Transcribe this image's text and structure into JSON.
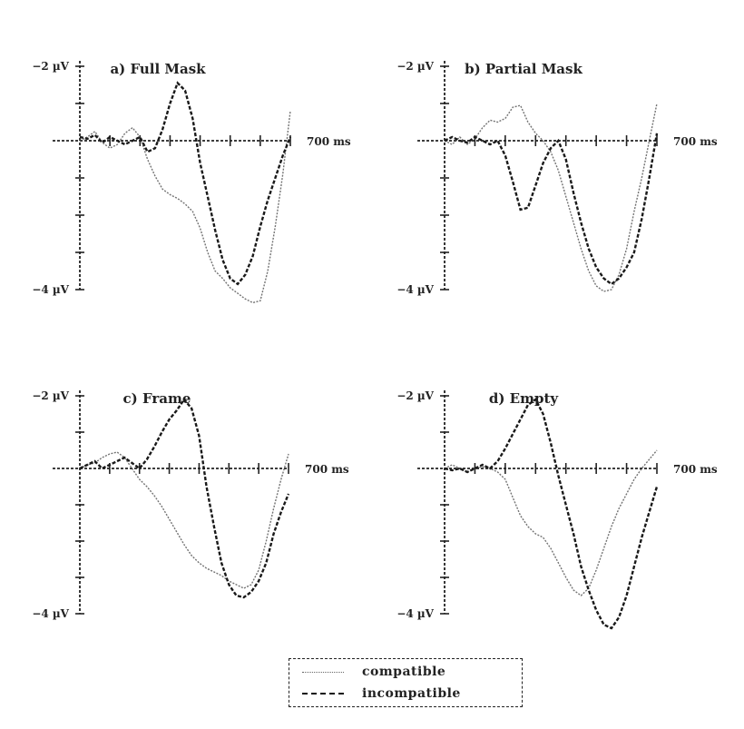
{
  "chart_data": [
    {
      "type": "line",
      "title": "a) Full Mask",
      "y_top_label": "−2 µV",
      "y_bottom_label": "−4 µV",
      "x_end_label": "700 ms",
      "xlim": [
        0,
        700
      ],
      "series": [
        {
          "name": "compatible",
          "x": [
            0,
            25,
            50,
            75,
            100,
            125,
            150,
            175,
            200,
            225,
            250,
            275,
            300,
            325,
            350,
            375,
            400,
            425,
            450,
            475,
            500,
            525,
            550,
            575,
            600,
            625,
            650,
            675,
            700
          ],
          "y": [
            0,
            0.1,
            0.25,
            -0.05,
            -0.2,
            -0.1,
            0.2,
            0.35,
            0.1,
            -0.5,
            -0.95,
            -1.3,
            -1.45,
            -1.55,
            -1.7,
            -1.9,
            -2.35,
            -3.0,
            -3.5,
            -3.7,
            -3.95,
            -4.1,
            -4.25,
            -4.35,
            -4.3,
            -3.5,
            -2.3,
            -0.9,
            0.8
          ]
        },
        {
          "name": "incompatible",
          "x": [
            0,
            25,
            50,
            75,
            100,
            125,
            150,
            175,
            200,
            225,
            250,
            275,
            300,
            325,
            350,
            375,
            400,
            425,
            450,
            475,
            500,
            525,
            550,
            575,
            600,
            625,
            650,
            675,
            700
          ],
          "y": [
            0.1,
            0.05,
            0.15,
            -0.05,
            0.1,
            0.0,
            -0.1,
            0.0,
            0.1,
            -0.3,
            -0.2,
            0.3,
            1.0,
            1.55,
            1.35,
            0.6,
            -0.6,
            -1.5,
            -2.4,
            -3.2,
            -3.7,
            -3.85,
            -3.6,
            -3.1,
            -2.3,
            -1.6,
            -1.0,
            -0.4,
            0.1
          ]
        }
      ]
    },
    {
      "type": "line",
      "title": "b) Partial Mask",
      "y_top_label": "−2 µV",
      "y_bottom_label": "−4 µV",
      "x_end_label": "700 ms",
      "xlim": [
        0,
        700
      ],
      "series": [
        {
          "name": "compatible",
          "x": [
            0,
            25,
            50,
            75,
            100,
            125,
            150,
            175,
            200,
            225,
            250,
            275,
            300,
            325,
            350,
            375,
            400,
            425,
            450,
            475,
            500,
            525,
            550,
            575,
            600,
            625,
            650,
            675,
            700
          ],
          "y": [
            0,
            -0.1,
            0.1,
            -0.1,
            0.05,
            0.35,
            0.55,
            0.5,
            0.6,
            0.9,
            0.95,
            0.5,
            0.2,
            0.0,
            -0.3,
            -0.8,
            -1.5,
            -2.2,
            -2.9,
            -3.5,
            -3.9,
            -4.05,
            -4.0,
            -3.6,
            -2.9,
            -1.9,
            -1.0,
            0.0,
            1.0
          ]
        },
        {
          "name": "incompatible",
          "x": [
            0,
            25,
            50,
            75,
            100,
            125,
            150,
            175,
            200,
            225,
            250,
            275,
            300,
            325,
            350,
            375,
            400,
            425,
            450,
            475,
            500,
            525,
            550,
            575,
            600,
            625,
            650,
            675,
            700
          ],
          "y": [
            0,
            0.1,
            0.0,
            -0.05,
            0.1,
            0.0,
            -0.1,
            0.0,
            -0.4,
            -1.1,
            -1.85,
            -1.8,
            -1.2,
            -0.6,
            -0.2,
            0.0,
            -0.5,
            -1.4,
            -2.2,
            -2.9,
            -3.4,
            -3.7,
            -3.85,
            -3.7,
            -3.4,
            -3.0,
            -2.1,
            -1.0,
            0.2
          ]
        }
      ]
    },
    {
      "type": "line",
      "title": "c) Frame",
      "y_top_label": "−2 µV",
      "y_bottom_label": "−4 µV",
      "x_end_label": "700 ms",
      "xlim": [
        0,
        700
      ],
      "series": [
        {
          "name": "compatible",
          "x": [
            0,
            25,
            50,
            75,
            100,
            125,
            150,
            175,
            200,
            225,
            250,
            275,
            300,
            325,
            350,
            375,
            400,
            425,
            450,
            475,
            500,
            525,
            550,
            575,
            600,
            625,
            650,
            675,
            700
          ],
          "y": [
            0,
            0.1,
            0.15,
            0.3,
            0.4,
            0.45,
            0.3,
            0.0,
            -0.3,
            -0.5,
            -0.75,
            -1.05,
            -1.4,
            -1.75,
            -2.1,
            -2.4,
            -2.6,
            -2.75,
            -2.85,
            -2.95,
            -3.1,
            -3.2,
            -3.3,
            -3.2,
            -2.8,
            -2.0,
            -1.1,
            -0.3,
            0.4
          ]
        },
        {
          "name": "incompatible",
          "x": [
            0,
            25,
            50,
            75,
            100,
            125,
            150,
            175,
            200,
            225,
            250,
            275,
            300,
            325,
            350,
            375,
            400,
            425,
            450,
            475,
            500,
            525,
            550,
            575,
            600,
            625,
            650,
            675,
            700
          ],
          "y": [
            0,
            0.1,
            0.2,
            0.0,
            0.1,
            0.2,
            0.3,
            0.15,
            0.0,
            0.25,
            0.6,
            1.0,
            1.35,
            1.6,
            1.9,
            1.65,
            0.9,
            -0.5,
            -1.6,
            -2.6,
            -3.2,
            -3.5,
            -3.55,
            -3.4,
            -3.1,
            -2.6,
            -1.8,
            -1.2,
            -0.7
          ]
        }
      ]
    },
    {
      "type": "line",
      "title": "d) Empty",
      "y_top_label": "−2 µV",
      "y_bottom_label": "−4 µV",
      "x_end_label": "700 ms",
      "xlim": [
        0,
        700
      ],
      "series": [
        {
          "name": "compatible",
          "x": [
            0,
            25,
            50,
            75,
            100,
            125,
            150,
            175,
            200,
            225,
            250,
            275,
            300,
            325,
            350,
            375,
            400,
            425,
            450,
            475,
            500,
            525,
            550,
            575,
            600,
            625,
            650,
            675,
            700
          ],
          "y": [
            0,
            0.1,
            0.0,
            -0.1,
            0.0,
            0.05,
            0.0,
            -0.1,
            -0.3,
            -0.8,
            -1.3,
            -1.6,
            -1.8,
            -1.9,
            -2.2,
            -2.6,
            -3.0,
            -3.35,
            -3.5,
            -3.3,
            -2.8,
            -2.2,
            -1.6,
            -1.1,
            -0.7,
            -0.3,
            0.0,
            0.25,
            0.5
          ]
        },
        {
          "name": "incompatible",
          "x": [
            0,
            25,
            50,
            75,
            100,
            125,
            150,
            175,
            200,
            225,
            250,
            275,
            300,
            325,
            350,
            375,
            400,
            425,
            450,
            475,
            500,
            525,
            550,
            575,
            600,
            625,
            650,
            675,
            700
          ],
          "y": [
            0,
            -0.05,
            0.0,
            -0.1,
            0.0,
            0.1,
            0.0,
            0.2,
            0.55,
            0.95,
            1.35,
            1.75,
            1.9,
            1.5,
            0.7,
            -0.2,
            -1.0,
            -1.8,
            -2.7,
            -3.35,
            -3.9,
            -4.3,
            -4.4,
            -4.1,
            -3.5,
            -2.7,
            -1.9,
            -1.2,
            -0.5
          ]
        }
      ]
    }
  ],
  "legend": {
    "entries": [
      {
        "label": "compatible"
      },
      {
        "label": "incompatible"
      }
    ]
  }
}
